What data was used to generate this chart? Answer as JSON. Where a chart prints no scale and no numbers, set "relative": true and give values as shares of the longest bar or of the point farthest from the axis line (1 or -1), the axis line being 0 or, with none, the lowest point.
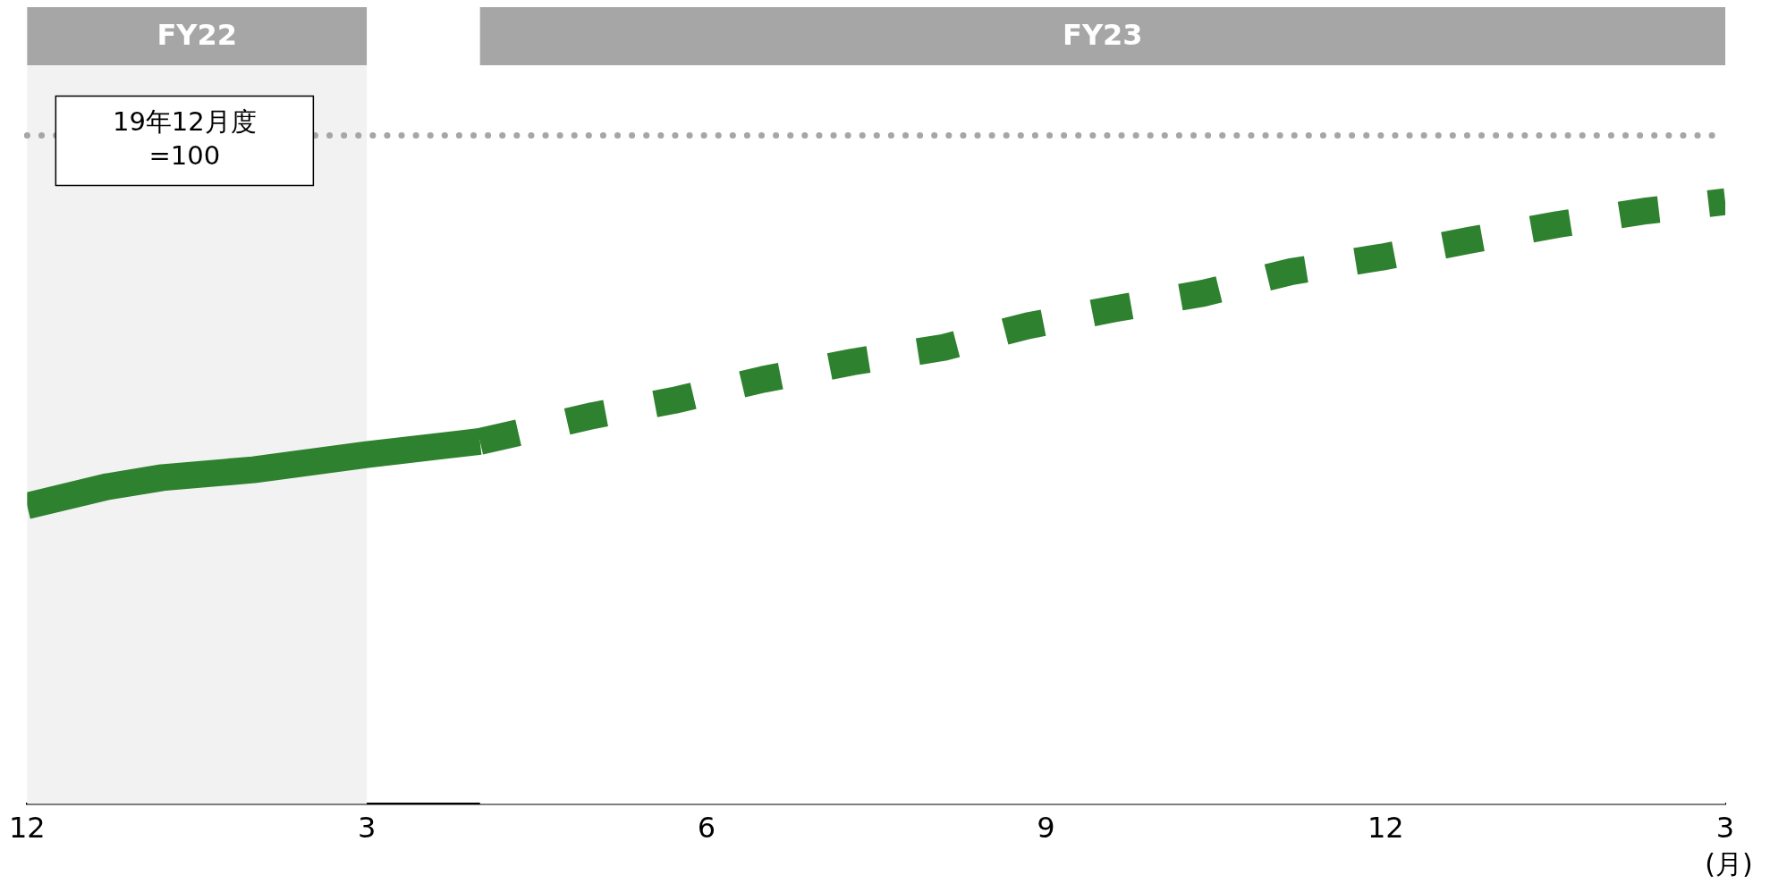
{
  "chart_data": {
    "type": "line",
    "relative": true,
    "xlabel": "(月)",
    "xlim": [
      "2022-12",
      "2024-03"
    ],
    "xticks": [
      {
        "value": "2022-12",
        "label": "12"
      },
      {
        "value": "2023-03",
        "label": "3"
      },
      {
        "value": "2023-06",
        "label": "6"
      },
      {
        "value": "2023-09",
        "label": "9"
      },
      {
        "value": "2023-12",
        "label": "12"
      },
      {
        "value": "2024-03",
        "label": "3"
      }
    ],
    "series": [
      {
        "color": "#2e812e",
        "line_style": "solid",
        "x": [
          "2022-12-01",
          "2022-12-23",
          "2023-01-07",
          "2023-02-01",
          "2023-03-01",
          "2023-04-01"
        ],
        "values": [
          0.495,
          0.527,
          0.542,
          0.555,
          0.58,
          0.602
        ]
      },
      {
        "color": "#2e812e",
        "line_style": "dashed",
        "x": [
          "2023-04-01",
          "2023-05-01",
          "2023-05-23",
          "2023-06-16",
          "2023-07-10",
          "2023-08-04",
          "2023-08-27",
          "2023-09-19",
          "2023-10-13",
          "2023-11-06",
          "2023-11-30",
          "2023-12-24",
          "2024-01-17",
          "2024-02-10",
          "2024-03-01"
        ],
        "values": [
          0.602,
          0.645,
          0.67,
          0.705,
          0.734,
          0.758,
          0.794,
          0.822,
          0.848,
          0.884,
          0.908,
          0.936,
          0.962,
          0.985,
          1
        ]
      }
    ],
    "ref_lines": [
      {
        "axis": "y",
        "value": 1.11,
        "color": "#a6a6a6",
        "line_style": "dotted"
      }
    ],
    "annotations": [
      "19年12月度\n=100"
    ],
    "bands": [
      {
        "axis": "x",
        "from": "2022-12",
        "to": "2023-03",
        "label": "FY22",
        "color": "#f2f2f2"
      },
      {
        "axis": "x",
        "from": "2023-04",
        "to": "2024-03",
        "label": "FY23",
        "color": "#ffffff"
      }
    ],
    "grid": false,
    "legend": false
  }
}
